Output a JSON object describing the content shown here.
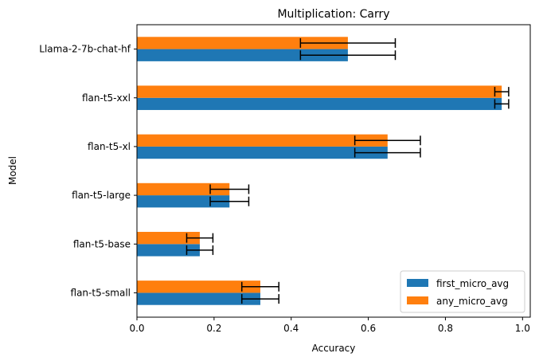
{
  "chart_data": {
    "type": "bar",
    "orientation": "horizontal",
    "title": "Multiplication: Carry",
    "xlabel": "Accuracy",
    "ylabel": "Model",
    "xlim": [
      0,
      1.02
    ],
    "xticks": [
      0.0,
      0.2,
      0.4,
      0.6,
      0.8,
      1.0
    ],
    "xtick_labels": [
      "0.0",
      "0.2",
      "0.4",
      "0.6",
      "0.8",
      "1.0"
    ],
    "categories": [
      "flan-t5-small",
      "flan-t5-base",
      "flan-t5-large",
      "flan-t5-xl",
      "flan-t5-xxl",
      "Llama-2-7b-chat-hf"
    ],
    "series": [
      {
        "name": "first_micro_avg",
        "color": "#1f77b4",
        "values": [
          0.32,
          0.163,
          0.24,
          0.65,
          0.946,
          0.547
        ],
        "errors": [
          0.048,
          0.034,
          0.05,
          0.085,
          0.018,
          0.123
        ]
      },
      {
        "name": "any_micro_avg",
        "color": "#ff7f0e",
        "values": [
          0.32,
          0.163,
          0.24,
          0.65,
          0.946,
          0.547
        ],
        "errors": [
          0.048,
          0.034,
          0.05,
          0.085,
          0.018,
          0.123
        ]
      }
    ],
    "grid": false,
    "legend_position": "lower-right"
  }
}
